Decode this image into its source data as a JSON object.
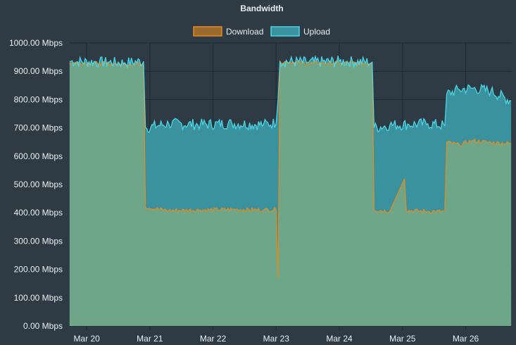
{
  "chart_data": {
    "type": "area",
    "title": "Bandwidth",
    "xlabel": "",
    "ylabel": "",
    "ylim": [
      0,
      1000
    ],
    "y_ticks": [
      "0.00 Mbps",
      "100.00 Mbps",
      "200.00 Mbps",
      "300.00 Mbps",
      "400.00 Mbps",
      "500.00 Mbps",
      "600.00 Mbps",
      "700.00 Mbps",
      "800.00 Mbps",
      "900.00 Mbps",
      "1000.00 Mbps"
    ],
    "x_ticks": [
      "Mar 20",
      "Mar 21",
      "Mar 22",
      "Mar 23",
      "Mar 24",
      "Mar 25",
      "Mar 26"
    ],
    "x_range_days": [
      19.72,
      26.73
    ],
    "legend_position": "top-center",
    "grid": true,
    "colors": {
      "download_line": "#e08a22",
      "download_fill": "#6ea68a",
      "upload_line": "#4ad5e6",
      "upload_fill": "#3a929f",
      "grid": "#1f2a30",
      "background": "#2e3b44"
    },
    "series": [
      {
        "name": "Download",
        "points": [
          [
            19.73,
            930
          ],
          [
            20.2,
            928
          ],
          [
            20.6,
            925
          ],
          [
            20.9,
            927
          ],
          [
            20.93,
            420
          ],
          [
            21.3,
            408
          ],
          [
            21.8,
            410
          ],
          [
            22.3,
            412
          ],
          [
            22.8,
            410
          ],
          [
            23.0,
            412
          ],
          [
            23.03,
            170
          ],
          [
            23.06,
            935
          ],
          [
            23.5,
            928
          ],
          [
            24.0,
            930
          ],
          [
            24.52,
            928
          ],
          [
            24.55,
            410
          ],
          [
            24.8,
            405
          ],
          [
            25.03,
            520
          ],
          [
            25.06,
            408
          ],
          [
            25.4,
            405
          ],
          [
            25.67,
            405
          ],
          [
            25.7,
            650
          ],
          [
            25.9,
            640
          ],
          [
            26.1,
            655
          ],
          [
            26.4,
            648
          ],
          [
            26.72,
            645
          ]
        ]
      },
      {
        "name": "Upload",
        "points": [
          [
            19.73,
            935
          ],
          [
            20.2,
            932
          ],
          [
            20.6,
            930
          ],
          [
            20.9,
            935
          ],
          [
            20.93,
            700
          ],
          [
            21.3,
            715
          ],
          [
            21.8,
            712
          ],
          [
            22.3,
            715
          ],
          [
            22.8,
            712
          ],
          [
            23.0,
            718
          ],
          [
            23.03,
            800
          ],
          [
            23.06,
            935
          ],
          [
            23.5,
            932
          ],
          [
            24.0,
            935
          ],
          [
            24.52,
            932
          ],
          [
            24.55,
            700
          ],
          [
            24.8,
            710
          ],
          [
            25.1,
            712
          ],
          [
            25.4,
            715
          ],
          [
            25.67,
            708
          ],
          [
            25.7,
            820
          ],
          [
            25.9,
            835
          ],
          [
            26.1,
            840
          ],
          [
            26.4,
            830
          ],
          [
            26.72,
            795
          ]
        ]
      }
    ]
  }
}
